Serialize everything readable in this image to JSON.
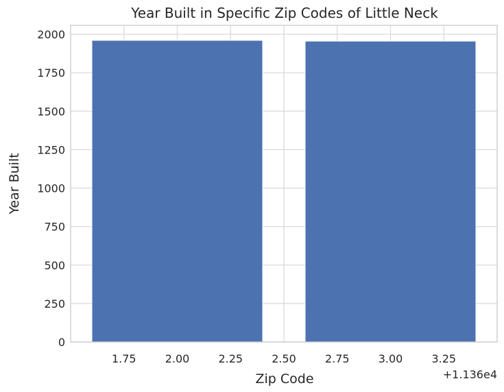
{
  "chart_data": {
    "type": "bar",
    "title": "Year Built in Specific Zip Codes of Little Neck",
    "xlabel": "Zip Code",
    "ylabel": "Year Built",
    "x_offset_label": "+1.136e4",
    "bars": [
      {
        "x": 11362,
        "value": 1960
      },
      {
        "x": 11363,
        "value": 1955
      }
    ],
    "bar_width": 0.8,
    "xlim": [
      11361.5,
      11363.5
    ],
    "ylim": [
      0,
      2058
    ],
    "x_ticks": [
      "1.75",
      "2.00",
      "2.25",
      "2.50",
      "2.75",
      "3.00",
      "3.25"
    ],
    "y_ticks": [
      "0",
      "250",
      "500",
      "750",
      "1000",
      "1250",
      "1500",
      "1750",
      "2000"
    ],
    "grid": true,
    "bar_color": "#4c72b0"
  }
}
